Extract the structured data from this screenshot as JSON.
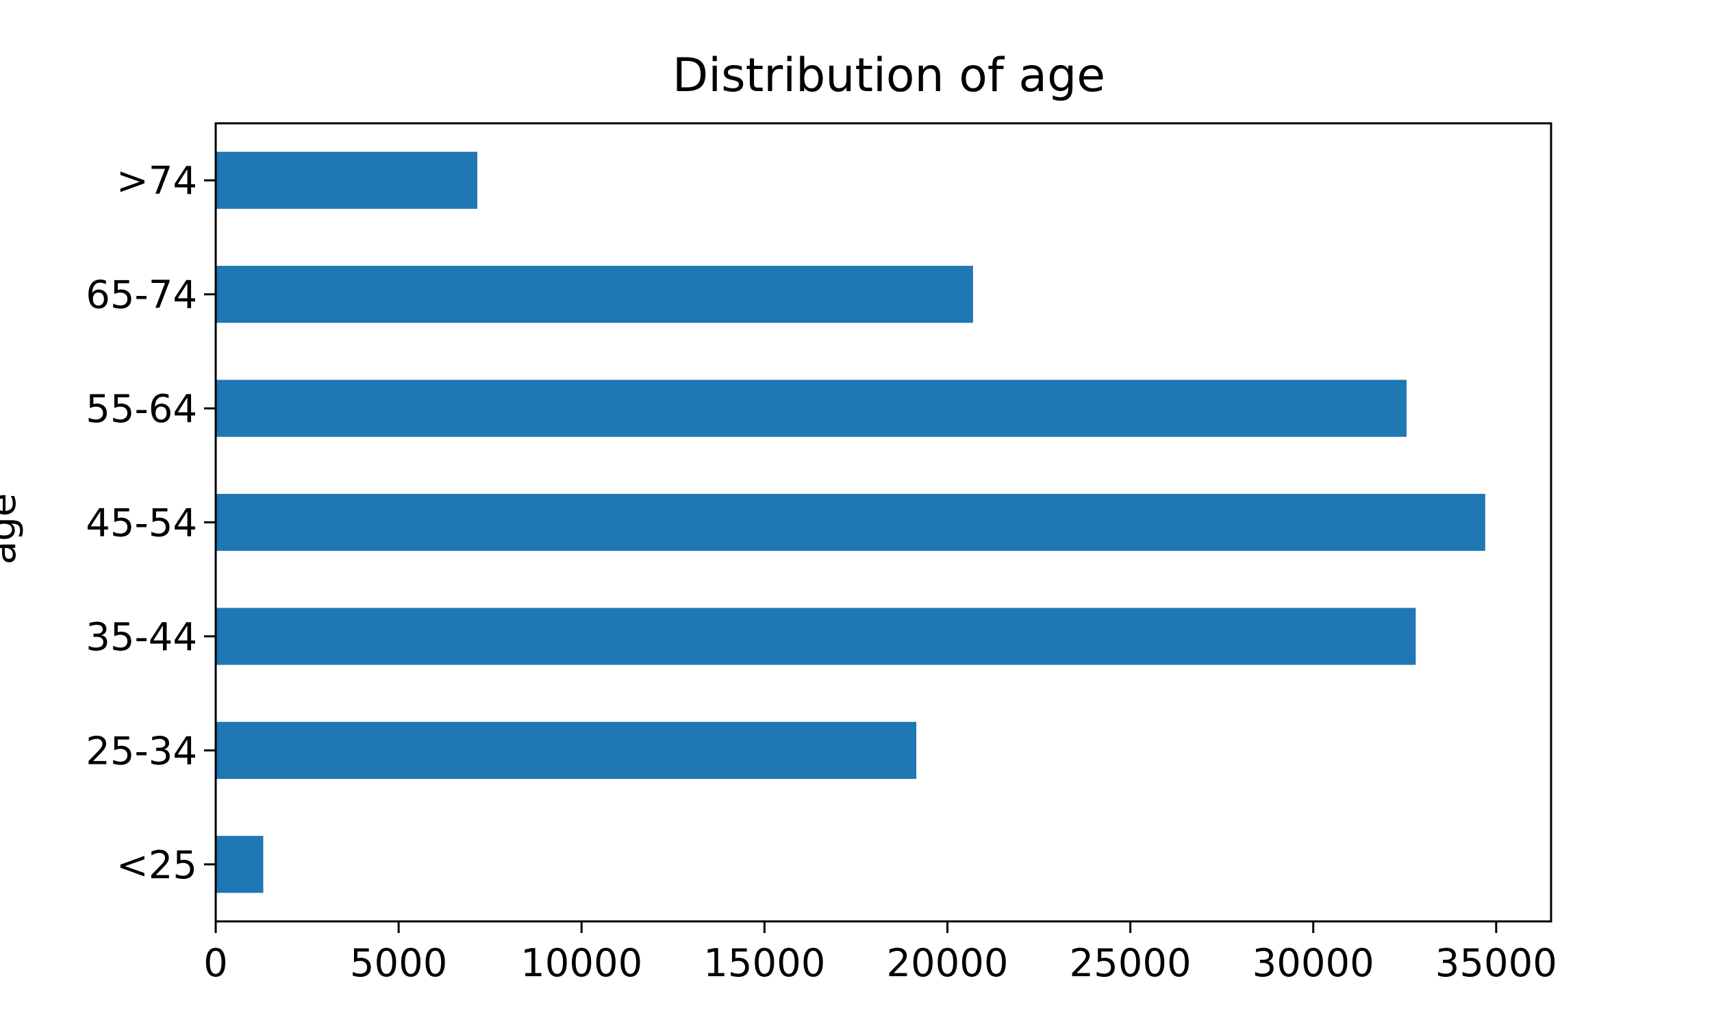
{
  "chart_data": {
    "type": "bar",
    "orientation": "horizontal",
    "title": "Distribution of age",
    "xlabel": "",
    "ylabel": "age",
    "categories": [
      "<25",
      "25-34",
      "35-44",
      "45-54",
      "55-64",
      "65-74",
      ">74"
    ],
    "values": [
      1300,
      19150,
      32800,
      34700,
      32550,
      20700,
      7150
    ],
    "xlim": [
      0,
      36500
    ],
    "xticks": [
      0,
      5000,
      10000,
      15000,
      20000,
      25000,
      30000,
      35000
    ],
    "xtick_labels": [
      "0",
      "5000",
      "10000",
      "15000",
      "20000",
      "25000",
      "30000",
      "35000"
    ],
    "grid": false,
    "legend": "none",
    "bar_color": "#1f77b4"
  }
}
